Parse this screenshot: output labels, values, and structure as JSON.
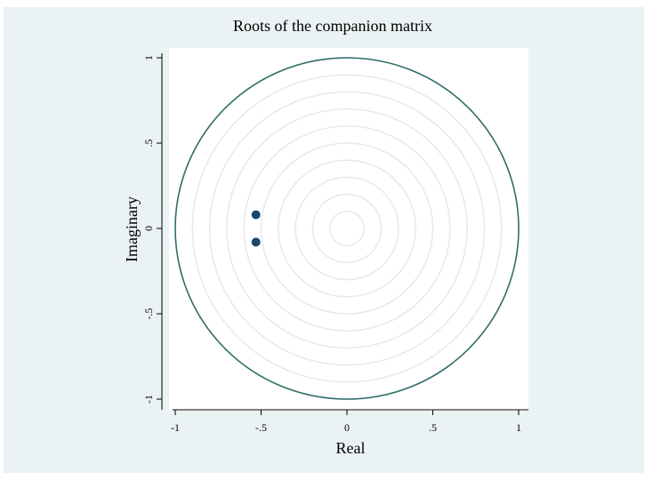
{
  "chart_data": {
    "type": "scatter",
    "title": "Roots of the companion matrix",
    "xlabel": "Real",
    "ylabel": "Imaginary",
    "xlim": [
      -1,
      1
    ],
    "ylim": [
      -1,
      1
    ],
    "x_ticks": [
      {
        "value": -1,
        "label": "-1"
      },
      {
        "value": -0.5,
        "label": "-.5"
      },
      {
        "value": 0,
        "label": "0"
      },
      {
        "value": 0.5,
        "label": ".5"
      },
      {
        "value": 1,
        "label": "1"
      }
    ],
    "y_ticks": [
      {
        "value": -1,
        "label": "-1"
      },
      {
        "value": -0.5,
        "label": "-.5"
      },
      {
        "value": 0,
        "label": "0"
      },
      {
        "value": 0.5,
        "label": ".5"
      },
      {
        "value": 1,
        "label": "1"
      }
    ],
    "unit_circle": {
      "radius": 1,
      "color": "#2e6e68"
    },
    "grid_circles": {
      "radii": [
        0.1,
        0.2,
        0.3,
        0.4,
        0.5,
        0.6,
        0.7,
        0.8,
        0.9
      ],
      "color": "#e8e8e8"
    },
    "points": [
      {
        "x": -0.53,
        "y": 0.08
      },
      {
        "x": -0.53,
        "y": -0.08
      }
    ],
    "point_color": "#1a476f",
    "grid": true,
    "legend": "none"
  },
  "colors": {
    "background": "#eaf2f3",
    "plot_region": "#ffffff",
    "axis": "#000000"
  }
}
